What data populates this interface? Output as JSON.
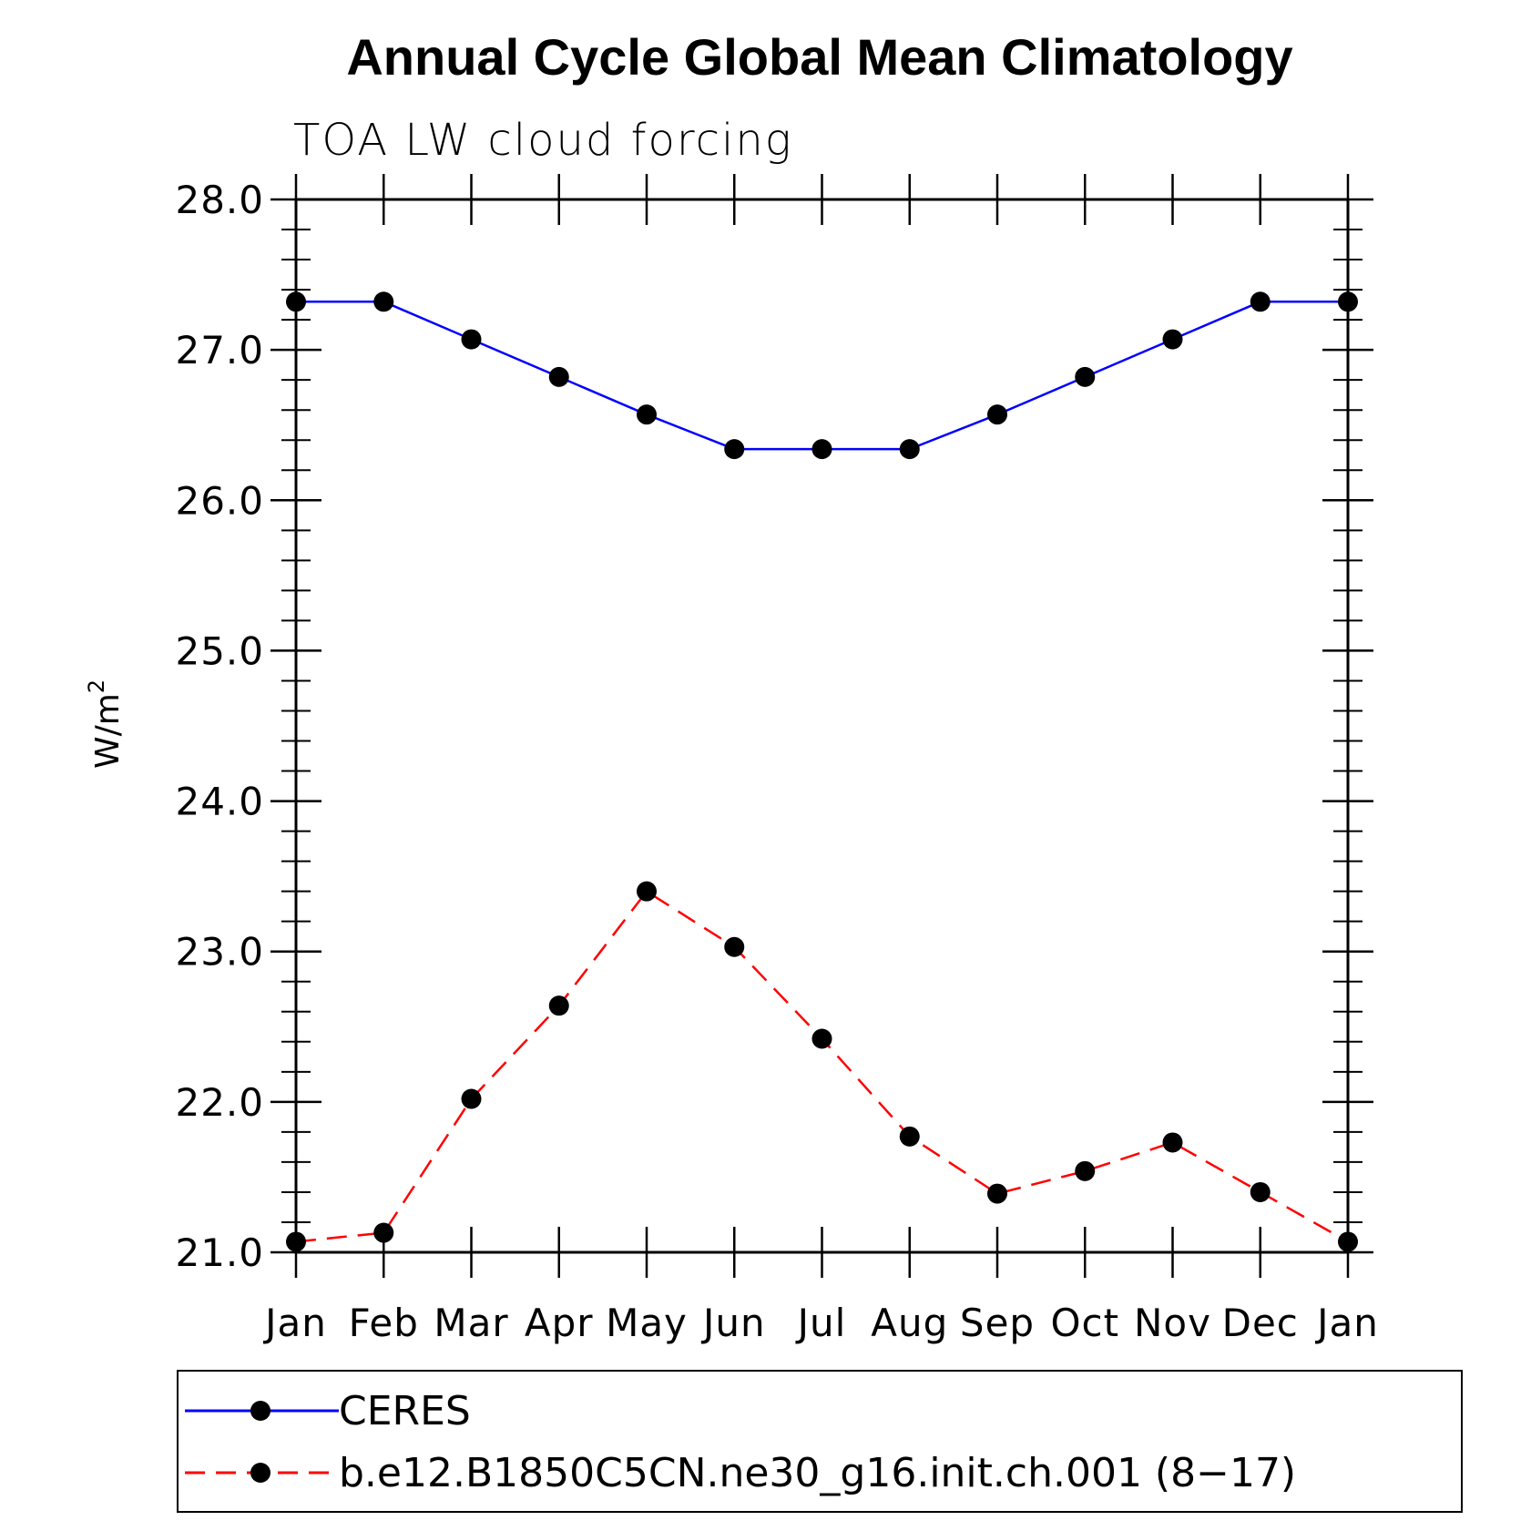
{
  "chart_data": {
    "type": "line",
    "title": "Annual Cycle Global Mean Climatology",
    "subtitle": "TOA LW cloud forcing",
    "xlabel": "",
    "ylabel_base": "W/m",
    "ylabel_sup": "2",
    "categories": [
      "Jan",
      "Feb",
      "Mar",
      "Apr",
      "May",
      "Jun",
      "Jul",
      "Aug",
      "Sep",
      "Oct",
      "Nov",
      "Dec",
      "Jan"
    ],
    "ylim": [
      21.0,
      28.0
    ],
    "yticks": [
      "21.0",
      "22.0",
      "23.0",
      "24.0",
      "25.0",
      "26.0",
      "27.0",
      "28.0"
    ],
    "series": [
      {
        "name": "CERES",
        "color": "#0000ff",
        "dashed": false,
        "values": [
          27.32,
          27.32,
          27.07,
          26.82,
          26.57,
          26.34,
          26.34,
          26.34,
          26.57,
          26.82,
          27.07,
          27.32,
          27.32
        ]
      },
      {
        "name": "b.e12.B1850C5CN.ne30_g16.init.ch.001 (8−17)",
        "color": "#ff0000",
        "dashed": true,
        "values": [
          21.07,
          21.13,
          22.02,
          22.64,
          23.4,
          23.03,
          22.42,
          21.77,
          21.39,
          21.54,
          21.73,
          21.4,
          21.07
        ]
      }
    ],
    "legend_position": "bottom"
  }
}
